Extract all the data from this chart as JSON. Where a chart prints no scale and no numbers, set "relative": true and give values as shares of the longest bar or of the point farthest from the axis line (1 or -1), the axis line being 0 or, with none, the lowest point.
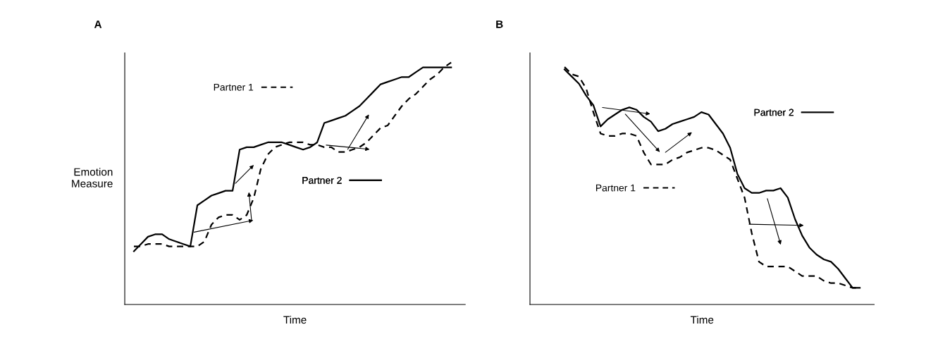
{
  "chart_data": [
    {
      "type": "line",
      "title": "A",
      "xlabel": "Time",
      "ylabel": "Emotion\nMeasure",
      "relative": true,
      "legend": "top left",
      "grid": false,
      "marker": "none",
      "categories": [
        null,
        null,
        null,
        null,
        null,
        null,
        null,
        null,
        null,
        null,
        null,
        null,
        null,
        null,
        null,
        null,
        null,
        null,
        null,
        null,
        null,
        null,
        null,
        null,
        null,
        null,
        null,
        null,
        null,
        null,
        null,
        null,
        null,
        null,
        null,
        null,
        null,
        null,
        null,
        null,
        null,
        null,
        null,
        null,
        null,
        null,
        null,
        null,
        null
      ],
      "series": [
        {
          "name": "Partner 1",
          "color": "#000000",
          "line_style": "dashed",
          "values": [
            null,
            0.24,
            0.24,
            0.25,
            0.25,
            0.25,
            0.24,
            0.24,
            0.24,
            0.24,
            0.24,
            0.26,
            0.33,
            0.36,
            0.37,
            0.37,
            0.35,
            0.37,
            0.44,
            0.56,
            0.62,
            0.65,
            0.66,
            0.67,
            0.67,
            0.67,
            0.66,
            0.66,
            0.65,
            0.65,
            0.63,
            0.63,
            0.64,
            0.65,
            0.67,
            0.7,
            0.73,
            0.74,
            0.78,
            0.82,
            0.85,
            0.87,
            0.9,
            0.93,
            0.95,
            0.98,
            1.0,
            null,
            null
          ]
        },
        {
          "name": "Partner 2",
          "color": "#000000",
          "line_style": "solid",
          "values": [
            null,
            0.22,
            0.25,
            0.28,
            0.29,
            0.29,
            0.27,
            0.26,
            0.25,
            0.24,
            0.41,
            0.43,
            0.45,
            0.46,
            0.47,
            0.47,
            0.64,
            0.65,
            0.65,
            0.66,
            0.67,
            0.67,
            0.67,
            0.66,
            0.65,
            0.64,
            0.65,
            0.67,
            0.75,
            0.76,
            0.77,
            0.78,
            0.8,
            0.82,
            0.85,
            0.88,
            0.91,
            0.92,
            0.93,
            0.94,
            0.94,
            0.96,
            0.98,
            0.98,
            0.98,
            0.98,
            0.98,
            null,
            null
          ]
        }
      ]
    },
    {
      "type": "line",
      "title": "B",
      "xlabel": "Time",
      "relative": true,
      "legend": "top right",
      "grid": false,
      "marker": "none",
      "categories": [
        null,
        null,
        null,
        null,
        null,
        null,
        null,
        null,
        null,
        null,
        null,
        null,
        null,
        null,
        null,
        null,
        null,
        null,
        null,
        null,
        null,
        null,
        null,
        null,
        null,
        null,
        null,
        null,
        null,
        null,
        null,
        null,
        null,
        null,
        null,
        null,
        null,
        null,
        null,
        null,
        null,
        null,
        null
      ],
      "series": [
        {
          "name": "Partner 1",
          "color": "#000000",
          "line_style": "dashed",
          "values": [
            1.0,
            0.97,
            0.96,
            0.91,
            0.81,
            0.72,
            0.71,
            0.71,
            0.72,
            0.72,
            0.71,
            0.64,
            0.59,
            0.59,
            0.59,
            0.61,
            0.62,
            0.64,
            0.65,
            0.66,
            0.66,
            0.65,
            0.63,
            0.61,
            0.53,
            0.45,
            0.3,
            0.18,
            0.16,
            0.16,
            0.16,
            0.16,
            0.14,
            0.12,
            0.12,
            0.12,
            0.1,
            0.09,
            0.09,
            0.08,
            0.07,
            0.07,
            null
          ]
        },
        {
          "name": "Partner 2",
          "color": "#000000",
          "line_style": "solid",
          "values": [
            0.99,
            0.96,
            0.93,
            0.88,
            0.84,
            0.75,
            0.78,
            0.8,
            0.82,
            0.83,
            0.82,
            0.79,
            0.77,
            0.73,
            0.74,
            0.76,
            0.77,
            0.78,
            0.79,
            0.81,
            0.8,
            0.76,
            0.72,
            0.66,
            0.55,
            0.49,
            0.47,
            0.47,
            0.48,
            0.48,
            0.49,
            0.45,
            0.36,
            0.29,
            0.24,
            0.21,
            0.19,
            0.18,
            0.15,
            0.11,
            0.07,
            0.07,
            null
          ]
        }
      ]
    }
  ]
}
